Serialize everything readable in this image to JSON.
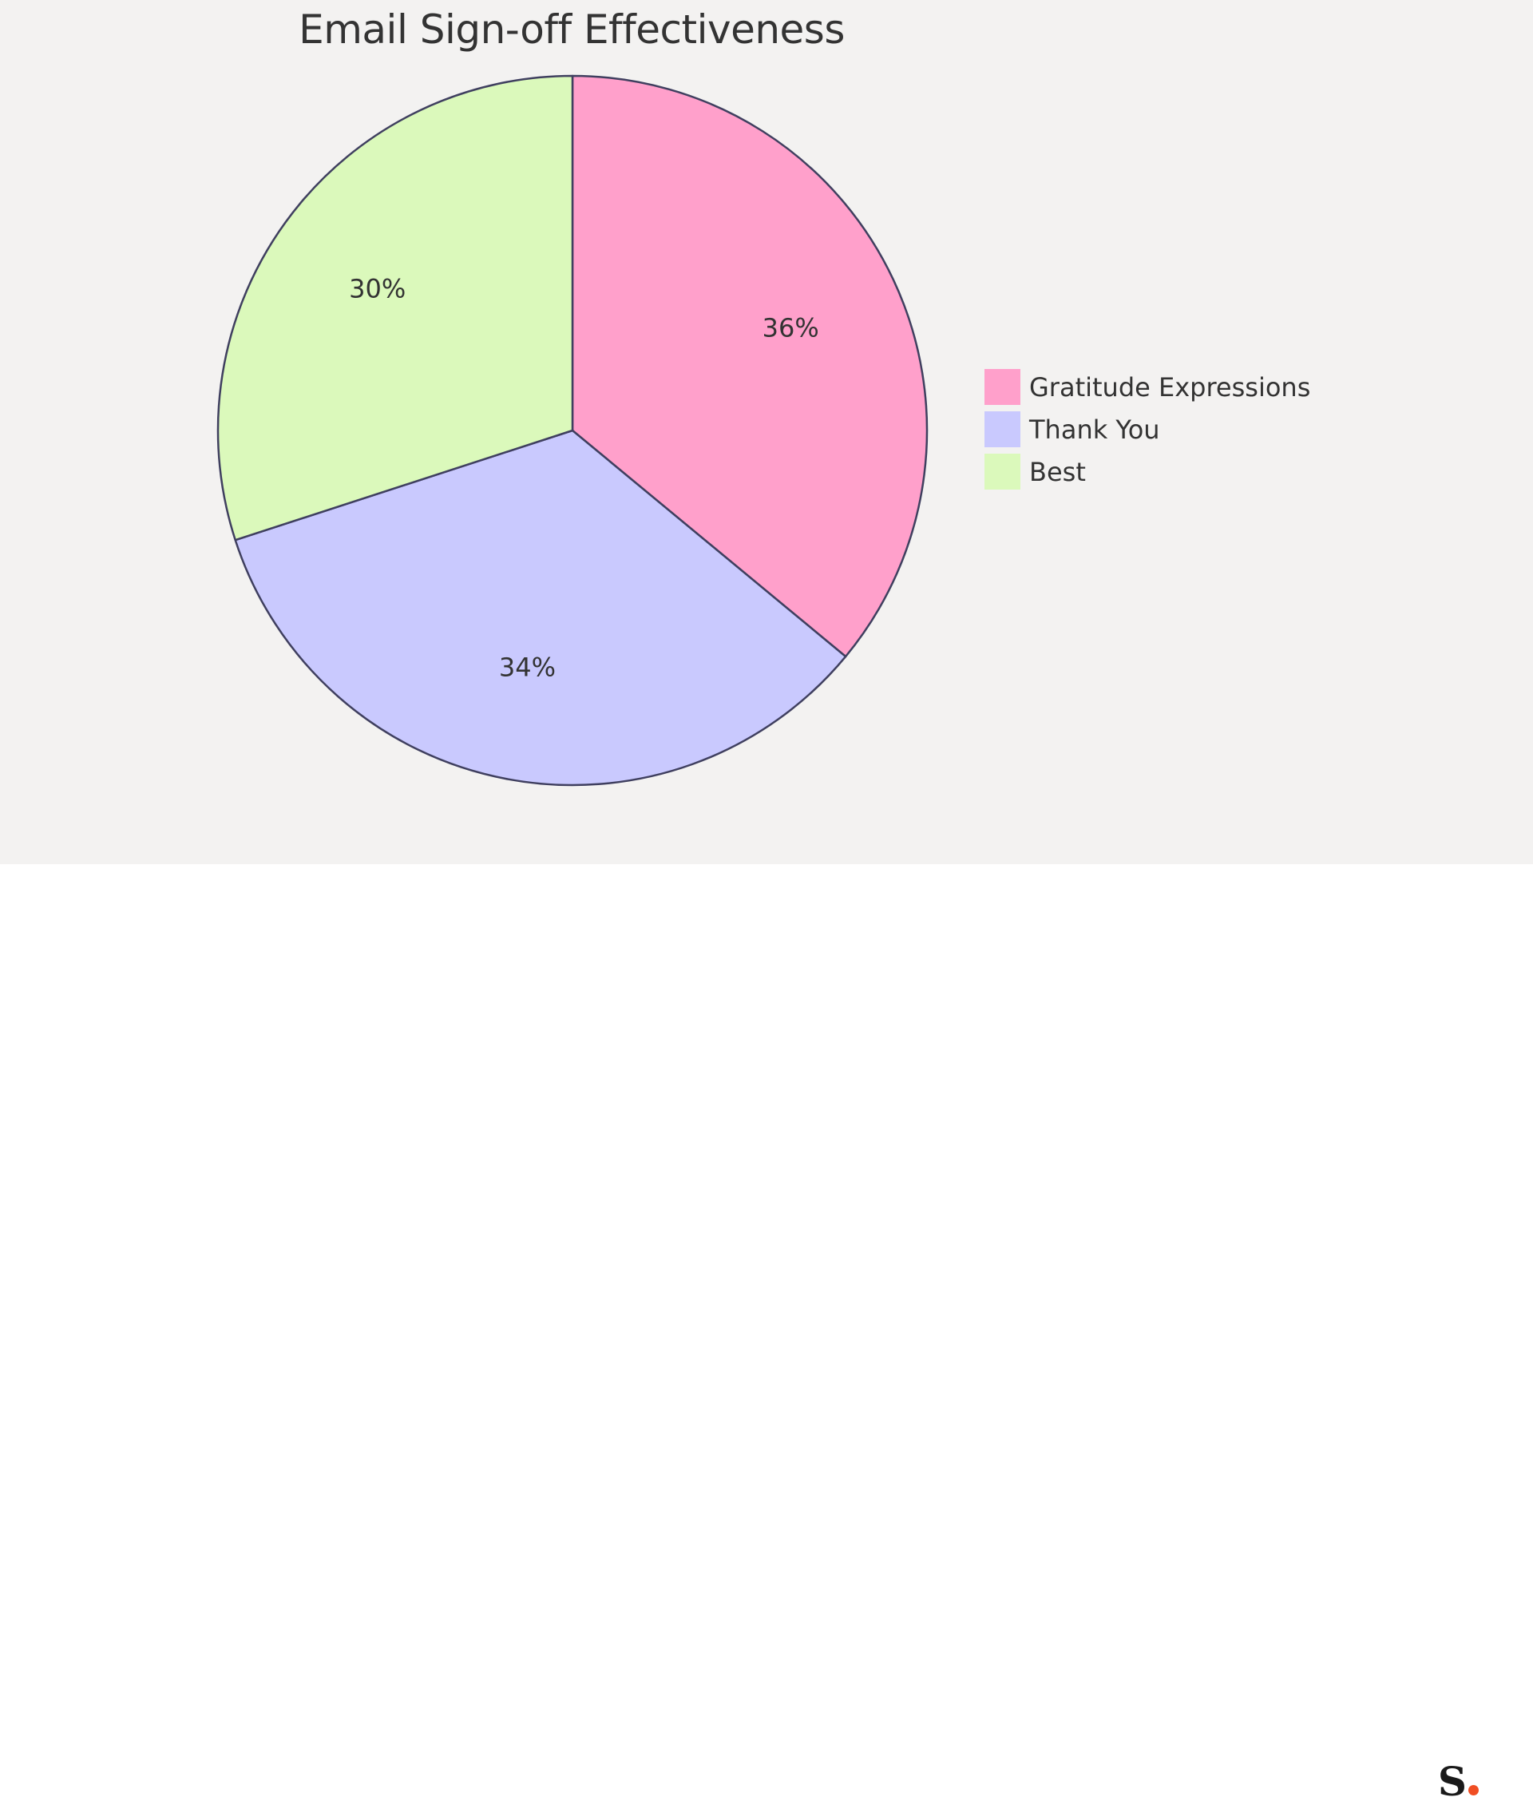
{
  "chart_data": {
    "type": "pie",
    "title": "Email Sign-off Effectiveness",
    "categories": [
      "Gratitude Expressions",
      "Thank You",
      "Best"
    ],
    "values": [
      36,
      34,
      30
    ],
    "value_labels": [
      "36%",
      "34%",
      "30%"
    ],
    "colors": [
      "#ffa0cb",
      "#c9c9fe",
      "#dbf9bb"
    ],
    "slice_border_color": "#3f3f5f",
    "legend_position": "right"
  },
  "branding": {
    "logo_letter": "S"
  }
}
